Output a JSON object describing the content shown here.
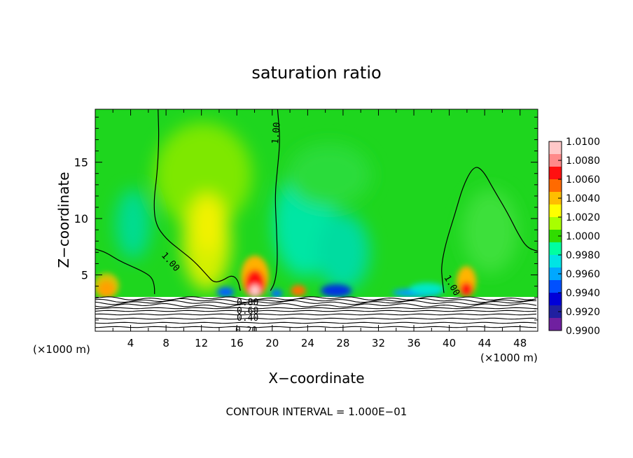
{
  "chart_data": {
    "type": "contour",
    "title": "saturation ratio",
    "xlabel": "X−coordinate",
    "ylabel": "Z−coordinate",
    "x_unit_label": "(×1000 m)",
    "z_unit_label": "(×1000 m)",
    "xlim": [
      0,
      50
    ],
    "ylim": [
      0,
      19.7
    ],
    "x_ticks": [
      "4",
      "8",
      "12",
      "16",
      "20",
      "24",
      "28",
      "32",
      "36",
      "40",
      "44",
      "48"
    ],
    "y_ticks": [
      "5",
      "10",
      "15"
    ],
    "contour_interval_text": "CONTOUR INTERVAL = 1.000E−01",
    "colorbar": {
      "levels": [
        "1.0100",
        "1.0080",
        "1.0060",
        "1.0040",
        "1.0020",
        "1.0000",
        "0.9980",
        "0.9960",
        "0.9940",
        "0.9920",
        "0.9900"
      ],
      "colors": [
        "#ffc8c8",
        "#ff8a8a",
        "#ff1010",
        "#ff6a00",
        "#ffbe00",
        "#ffff00",
        "#a8ff00",
        "#30dc00",
        "#00ffa0",
        "#00e4e4",
        "#00a8ff",
        "#0050ff",
        "#0000d8",
        "#2020a0",
        "#7020a0"
      ]
    },
    "contour_labels": [
      "1.00",
      "1.00",
      "1.00",
      "0.80",
      "0.60",
      "0.40",
      "0.20"
    ],
    "contour_lines": [
      {
        "level": 1.0,
        "points": [
          [
            0,
            7.3
          ],
          [
            1.2,
            7.0
          ],
          [
            2.6,
            6.3
          ],
          [
            4,
            5.8
          ],
          [
            5.4,
            5.3
          ],
          [
            6.4,
            4.8
          ],
          [
            6.7,
            4.0
          ],
          [
            6.7,
            3.3
          ]
        ]
      },
      {
        "level": 1.0,
        "points": [
          [
            7.1,
            19.7
          ],
          [
            7.2,
            17
          ],
          [
            7.0,
            14
          ],
          [
            6.6,
            11.5
          ],
          [
            6.8,
            9.5
          ],
          [
            8,
            8.2
          ],
          [
            9.6,
            7.2
          ],
          [
            11.2,
            6.2
          ],
          [
            12.6,
            5.0
          ],
          [
            13.4,
            4.3
          ],
          [
            14.4,
            4.5
          ],
          [
            15.4,
            5.0
          ],
          [
            16.1,
            4.6
          ],
          [
            16.4,
            3.6
          ]
        ]
      },
      {
        "level": 1.0,
        "points": [
          [
            20.6,
            19.7
          ],
          [
            20.9,
            17
          ],
          [
            20.6,
            14.5
          ],
          [
            20.3,
            12
          ],
          [
            20.5,
            9
          ],
          [
            20.6,
            6
          ],
          [
            20.3,
            4.3
          ],
          [
            19.8,
            3.6
          ]
        ]
      },
      {
        "level": 1.0,
        "points": [
          [
            39.4,
            3.4
          ],
          [
            39.2,
            4.6
          ],
          [
            39.1,
            5.8
          ],
          [
            39.6,
            7.8
          ],
          [
            40.6,
            10.3
          ],
          [
            41.6,
            13
          ],
          [
            42.8,
            14.7
          ],
          [
            43.8,
            14.3
          ],
          [
            45,
            12.6
          ],
          [
            46.6,
            10.5
          ],
          [
            47.8,
            8.6
          ],
          [
            48.8,
            7.4
          ],
          [
            50,
            7.1
          ]
        ]
      }
    ]
  }
}
